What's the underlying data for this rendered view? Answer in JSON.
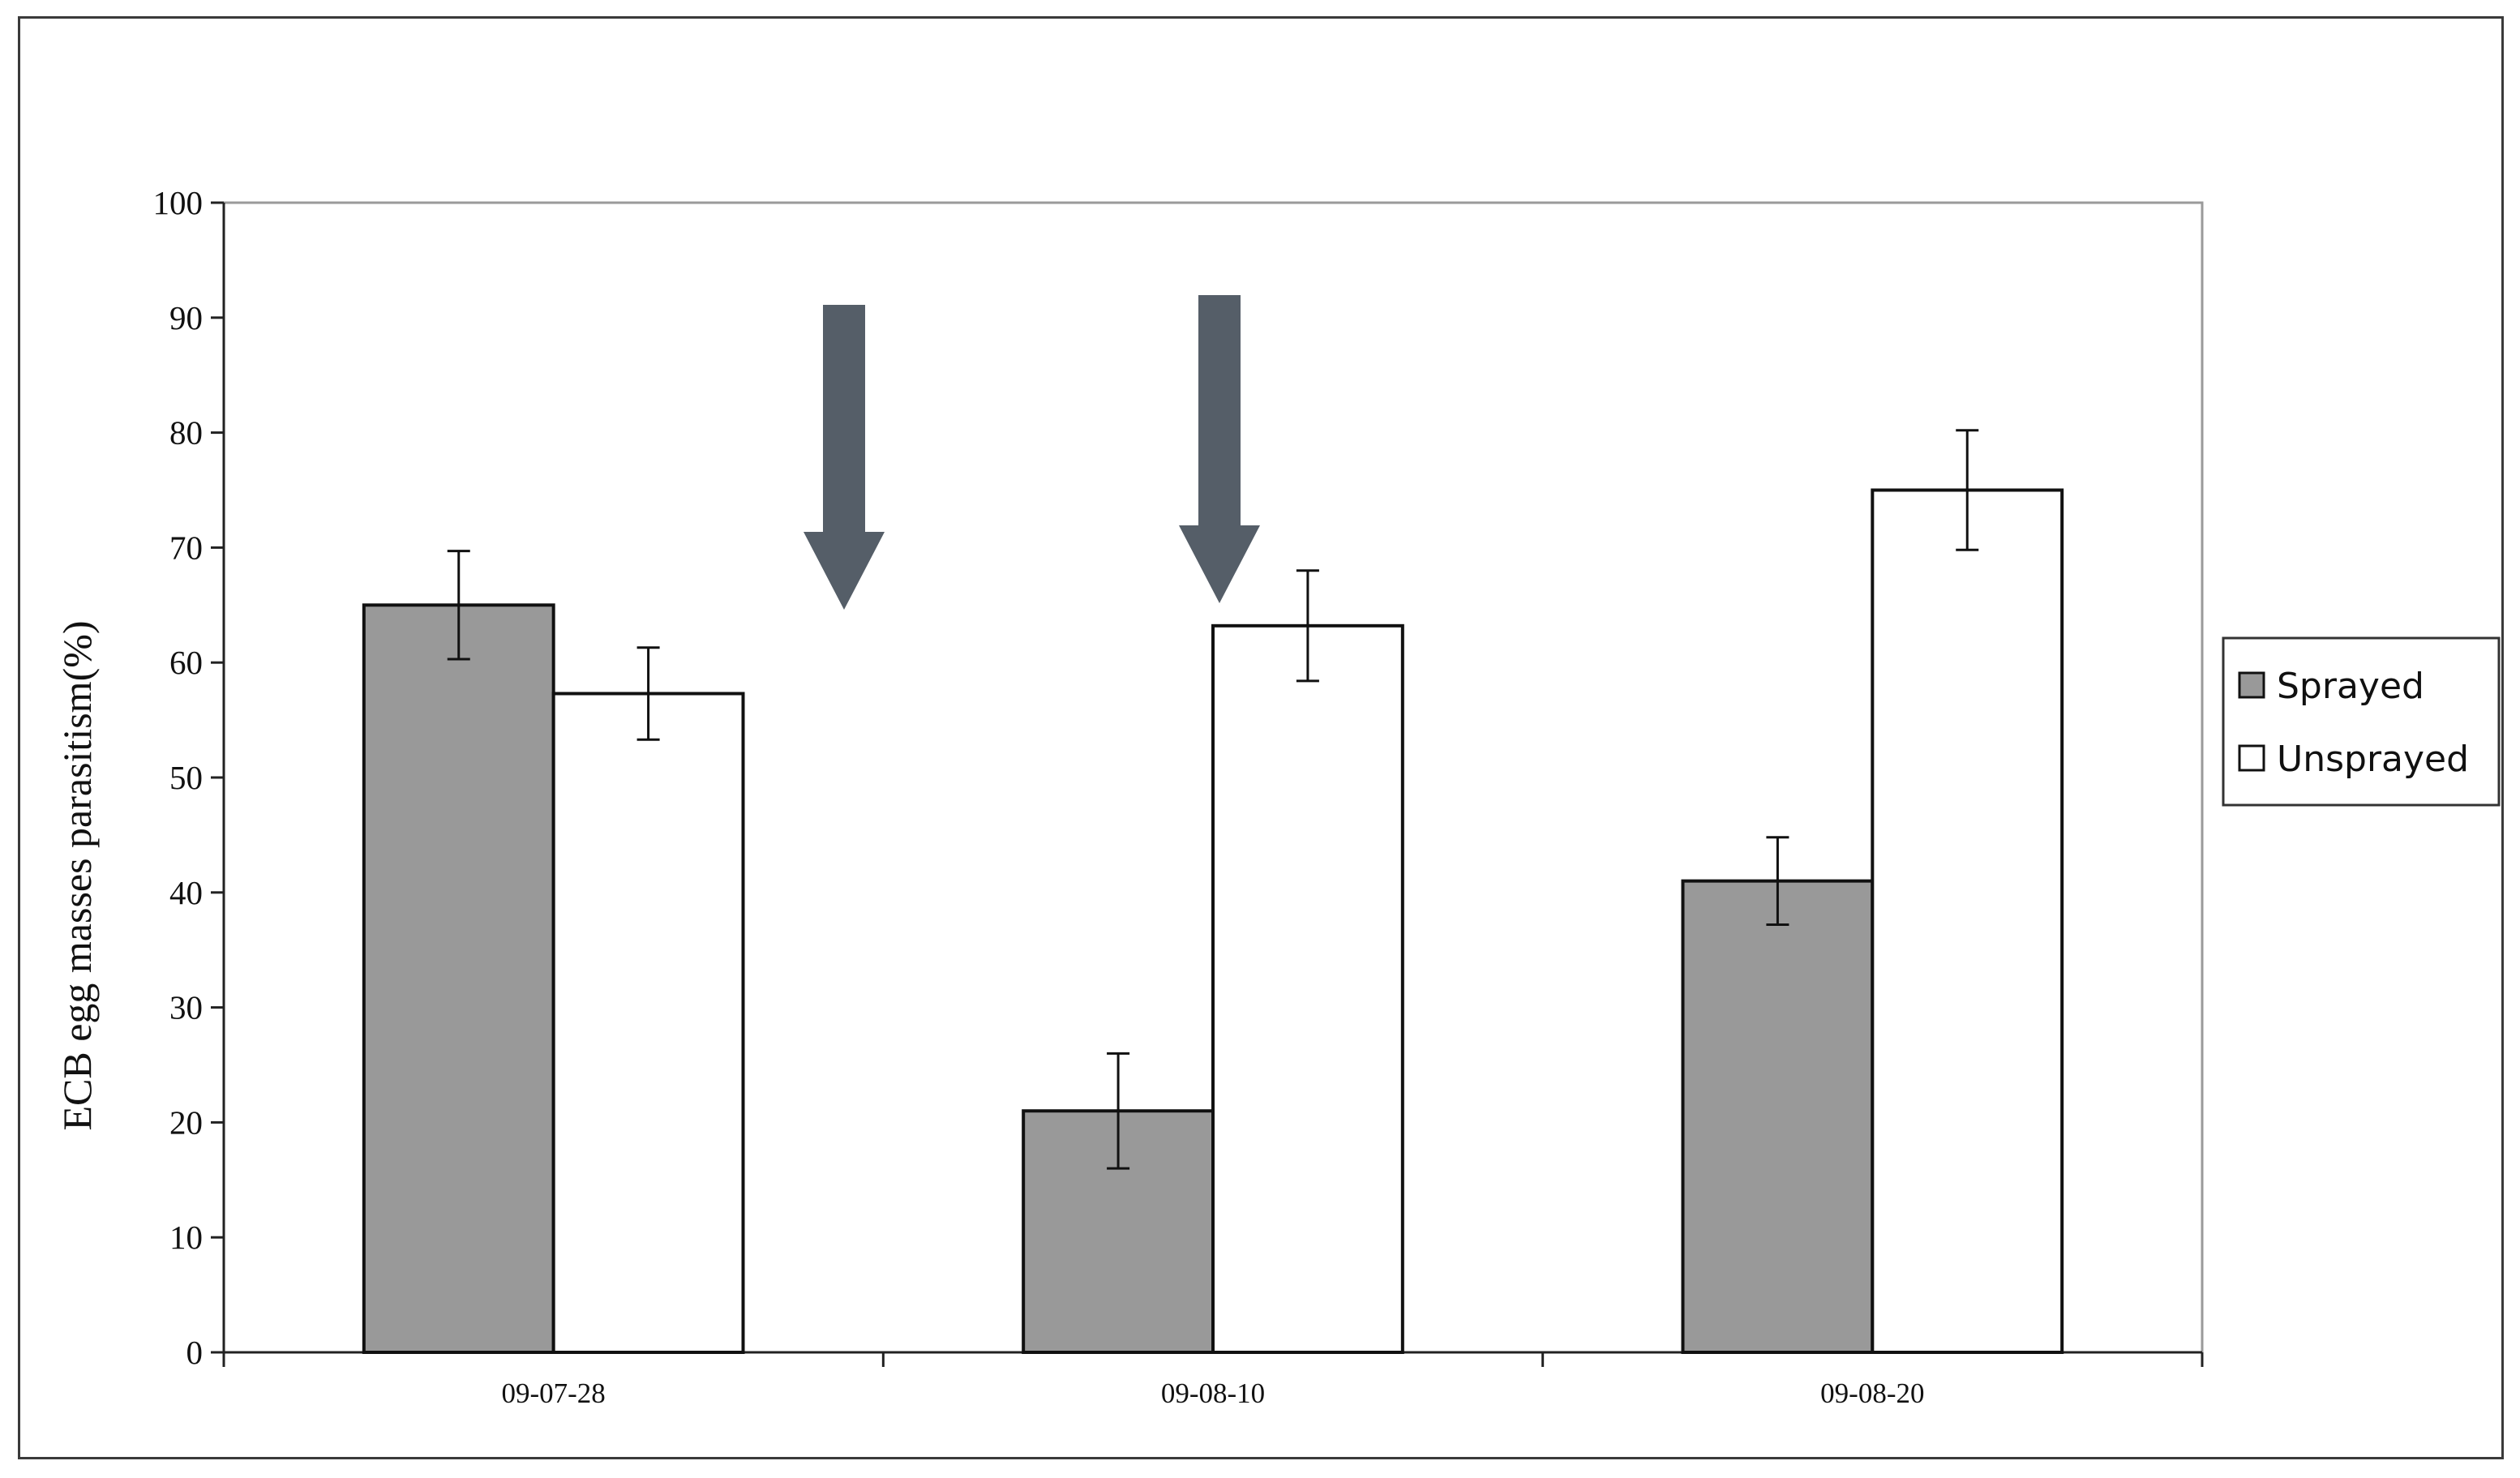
{
  "chart_data": {
    "type": "bar",
    "title": "",
    "xlabel": "",
    "ylabel": "ECB egg masses parasitism(%)",
    "ylim": [
      0,
      100
    ],
    "yticks": [
      0,
      10,
      20,
      30,
      40,
      50,
      60,
      70,
      80,
      90,
      100
    ],
    "categories": [
      "09-07-28",
      "09-08-10",
      "09-08-20"
    ],
    "series": [
      {
        "name": "Sprayed",
        "color": "#999999",
        "values": [
          65,
          21,
          41
        ],
        "errors": [
          4.7,
          5,
          3.8
        ]
      },
      {
        "name": "Unsprayed",
        "color": "#ffffff",
        "values": [
          57.3,
          63.2,
          75
        ],
        "errors": [
          4,
          4.8,
          5.2
        ]
      }
    ],
    "annotations": [
      {
        "type": "arrow-down",
        "position": "between 09-07-28 and 09-08-10",
        "color": "#555e68"
      },
      {
        "type": "arrow-down",
        "position": "09-08-10 above Unsprayed bar",
        "color": "#555e68"
      }
    ],
    "grid": false,
    "legend": {
      "placement": "right"
    }
  }
}
